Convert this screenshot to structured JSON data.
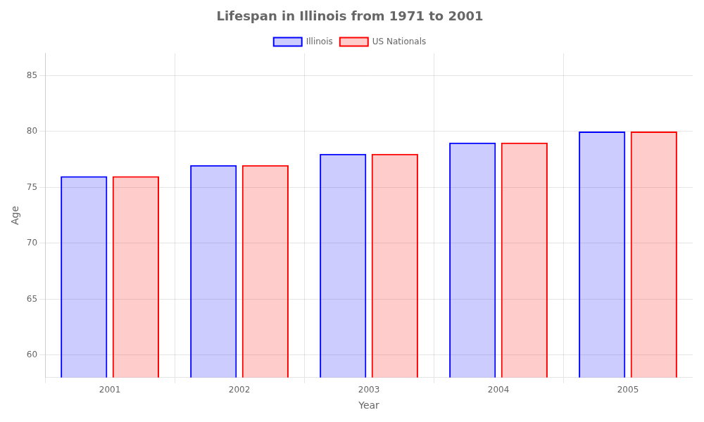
{
  "chart_data": {
    "type": "bar",
    "title": "Lifespan in Illinois from 1971 to 2001",
    "xlabel": "Year",
    "ylabel": "Age",
    "categories": [
      "2001",
      "2002",
      "2003",
      "2004",
      "2005"
    ],
    "series": [
      {
        "name": "Illinois",
        "color": "#0000ff",
        "values": [
          76,
          77,
          78,
          79,
          80
        ]
      },
      {
        "name": "US Nationals",
        "color": "#ff0000",
        "values": [
          76,
          77,
          78,
          79,
          80
        ]
      }
    ],
    "ylim": [
      58,
      87
    ],
    "yticks": [
      60,
      65,
      70,
      75,
      80,
      85
    ],
    "grid": true,
    "legend": "top"
  }
}
